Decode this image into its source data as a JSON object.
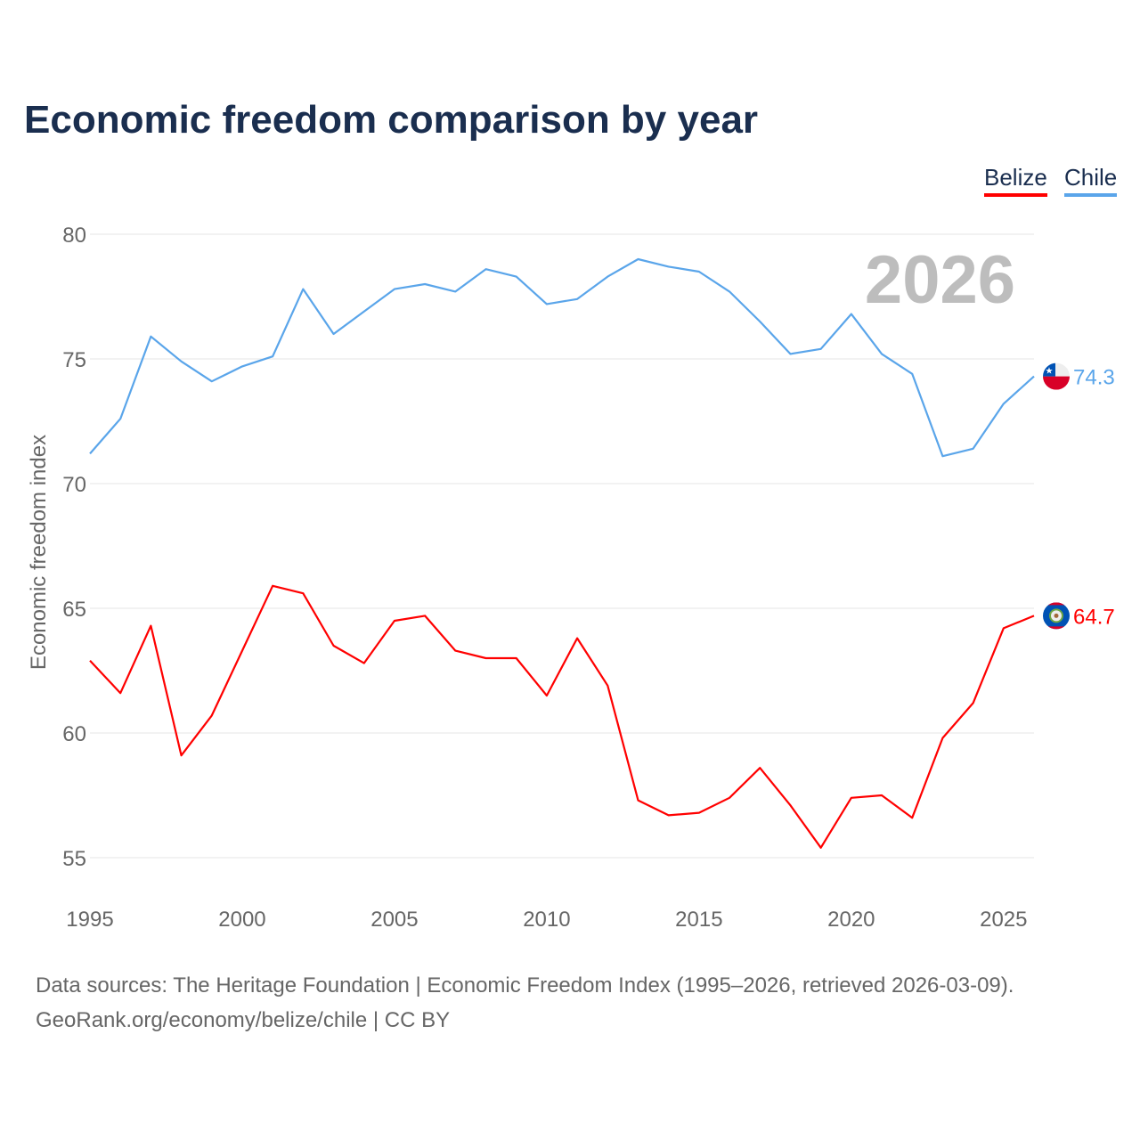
{
  "chart_data": {
    "type": "line",
    "title": "Economic freedom comparison by year",
    "ylabel": "Economic freedom index",
    "xlabel": "",
    "ylim": [
      55,
      80
    ],
    "xlim": [
      1995,
      2026
    ],
    "yticks": [
      55,
      60,
      65,
      70,
      75,
      80
    ],
    "xticks": [
      1995,
      2000,
      2005,
      2010,
      2015,
      2020,
      2025
    ],
    "year_watermark": "2026",
    "grid": true,
    "legend_position": "top-right",
    "x": [
      1995,
      1996,
      1997,
      1998,
      1999,
      2000,
      2001,
      2002,
      2003,
      2004,
      2005,
      2006,
      2007,
      2008,
      2009,
      2010,
      2011,
      2012,
      2013,
      2014,
      2015,
      2016,
      2017,
      2018,
      2019,
      2020,
      2021,
      2022,
      2023,
      2024,
      2025,
      2026
    ],
    "series": [
      {
        "name": "Belize",
        "color": "#ff0000",
        "end_label": "64.7",
        "values": [
          62.9,
          61.6,
          64.3,
          59.1,
          60.7,
          63.3,
          65.9,
          65.6,
          63.5,
          62.8,
          64.5,
          64.7,
          63.3,
          63.0,
          63.0,
          61.5,
          63.8,
          61.9,
          57.3,
          56.7,
          56.8,
          57.4,
          58.6,
          57.1,
          55.4,
          57.4,
          57.5,
          56.6,
          59.8,
          61.2,
          64.2,
          64.7
        ]
      },
      {
        "name": "Chile",
        "color": "#5aa5ea",
        "end_label": "74.3",
        "values": [
          71.2,
          72.6,
          75.9,
          74.9,
          74.1,
          74.7,
          75.1,
          77.8,
          76.0,
          76.9,
          77.8,
          78.0,
          77.7,
          78.6,
          78.3,
          77.2,
          77.4,
          78.3,
          79.0,
          78.7,
          78.5,
          77.7,
          76.5,
          75.2,
          75.4,
          76.8,
          75.2,
          74.4,
          71.1,
          71.4,
          73.2,
          74.3
        ]
      }
    ]
  },
  "source_line1": "Data sources: The Heritage Foundation | Economic Freedom Index (1995–2026, retrieved 2026-03-09).",
  "source_line2": "GeoRank.org/economy/belize/chile | CC BY"
}
